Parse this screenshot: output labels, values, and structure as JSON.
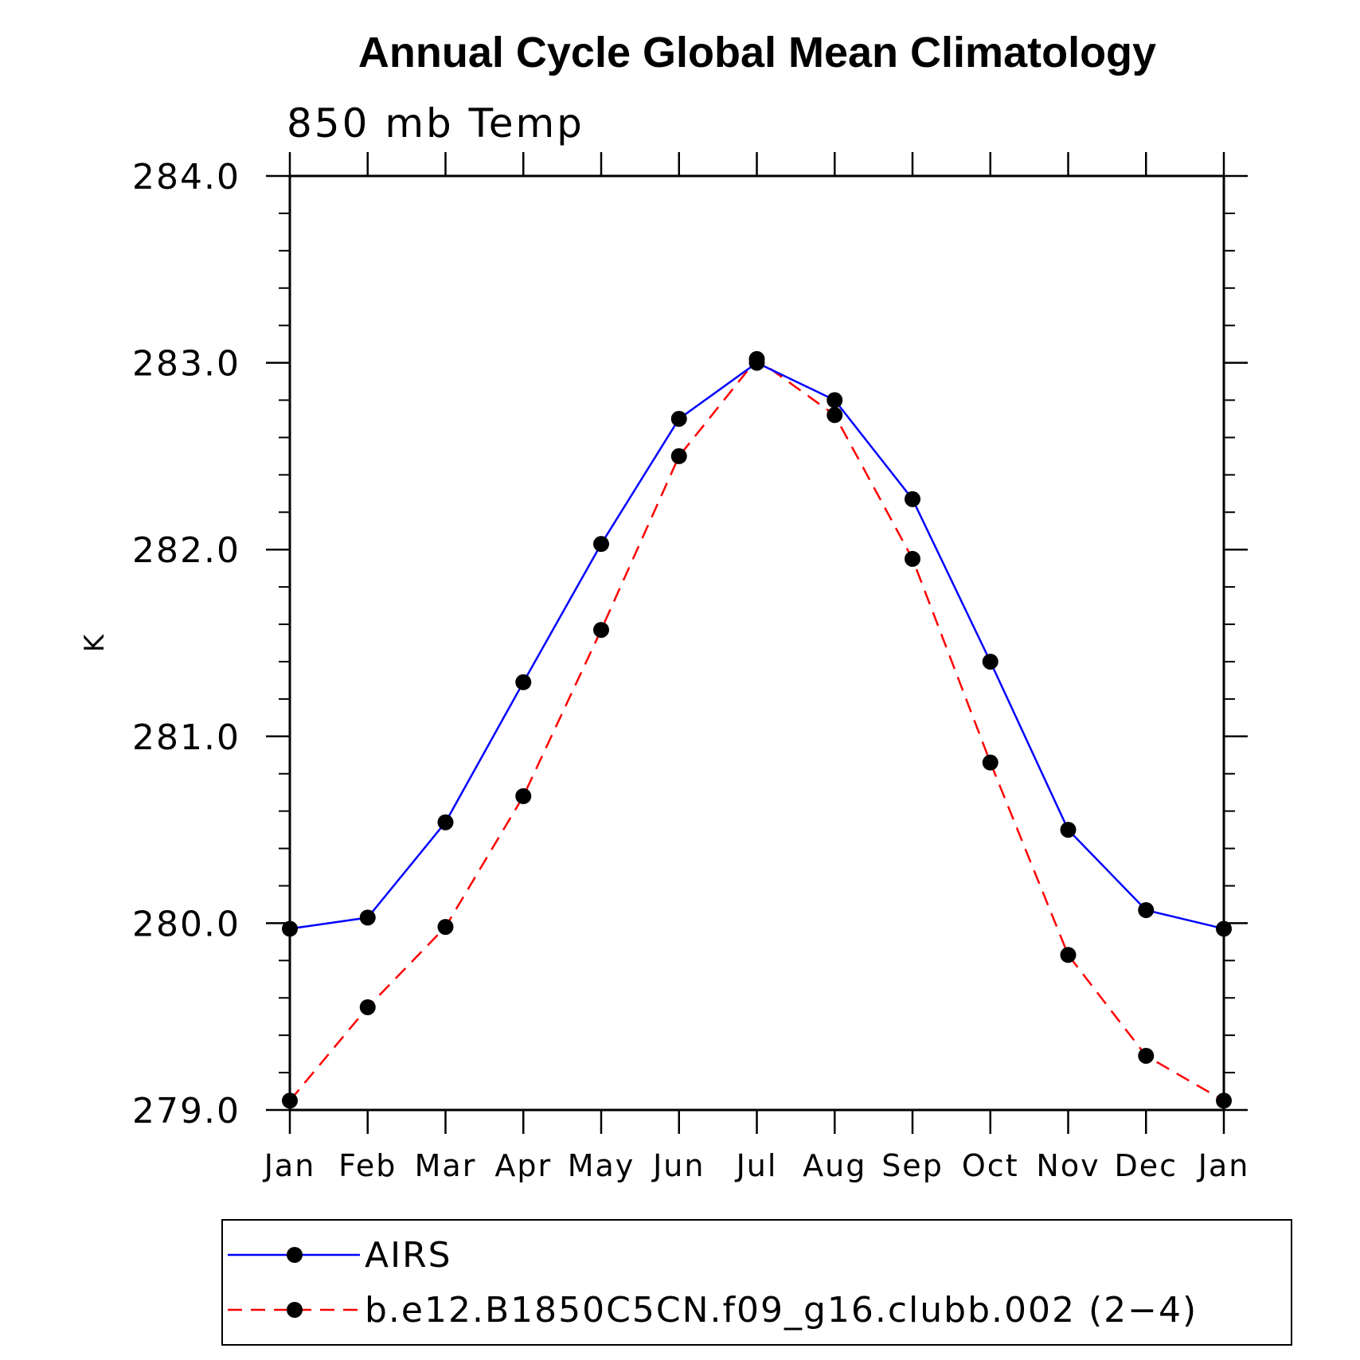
{
  "chart_data": {
    "type": "line",
    "title": "Annual Cycle Global Mean Climatology",
    "subtitle": "850 mb Temp",
    "ylabel": "K",
    "xlabel": "",
    "categories": [
      "Jan",
      "Feb",
      "Mar",
      "Apr",
      "May",
      "Jun",
      "Jul",
      "Aug",
      "Sep",
      "Oct",
      "Nov",
      "Dec",
      "Jan"
    ],
    "ylim": [
      279.0,
      284.0
    ],
    "yticks": [
      "279.0",
      "280.0",
      "281.0",
      "282.0",
      "283.0",
      "284.0"
    ],
    "legend_position": "bottom",
    "series": [
      {
        "name": "AIRS",
        "color": "#0000ff",
        "dash": "solid",
        "values": [
          279.97,
          280.03,
          280.54,
          281.29,
          282.03,
          282.7,
          283.0,
          282.8,
          282.27,
          281.4,
          280.5,
          280.07,
          279.97
        ]
      },
      {
        "name": "b.e12.B1850C5CN.f09_g16.clubb.002 (2−4)",
        "color": "#ff0000",
        "dash": "dashed",
        "values": [
          279.05,
          279.55,
          279.98,
          280.68,
          281.57,
          282.5,
          283.02,
          282.72,
          281.95,
          280.86,
          279.83,
          279.29,
          279.05
        ]
      }
    ]
  }
}
